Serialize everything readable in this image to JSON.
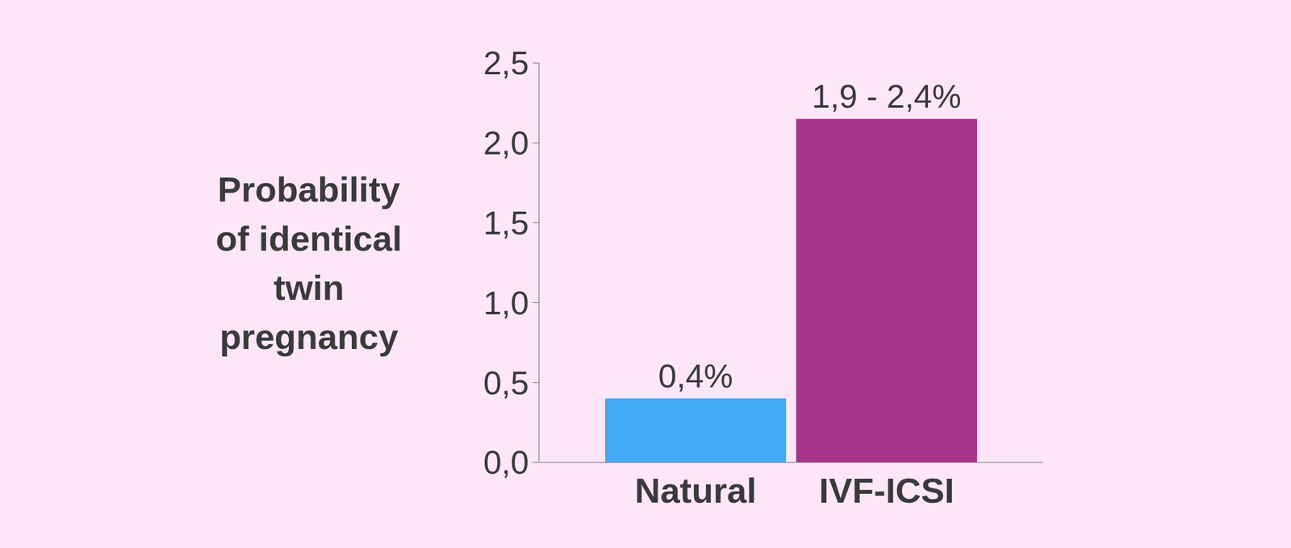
{
  "chart_data": {
    "type": "bar",
    "y_label": "Probability of identical twin pregnancy",
    "categories": [
      "Natural",
      "IVF-ICSI"
    ],
    "values": [
      0.4,
      2.15
    ],
    "value_labels": [
      "0,4%",
      "1,9 - 2,4%"
    ],
    "colors": [
      "#42aaf5",
      "#a63589"
    ],
    "ylim": [
      0,
      2.5
    ],
    "yticks": [
      {
        "value": 0,
        "label": "0,0"
      },
      {
        "value": 0.5,
        "label": "0,5"
      },
      {
        "value": 1,
        "label": "1,0"
      },
      {
        "value": 1.5,
        "label": "1,5"
      },
      {
        "value": 2,
        "label": "2,0"
      },
      {
        "value": 2.5,
        "label": "2,5"
      }
    ],
    "data_labels": true,
    "grid": false
  }
}
